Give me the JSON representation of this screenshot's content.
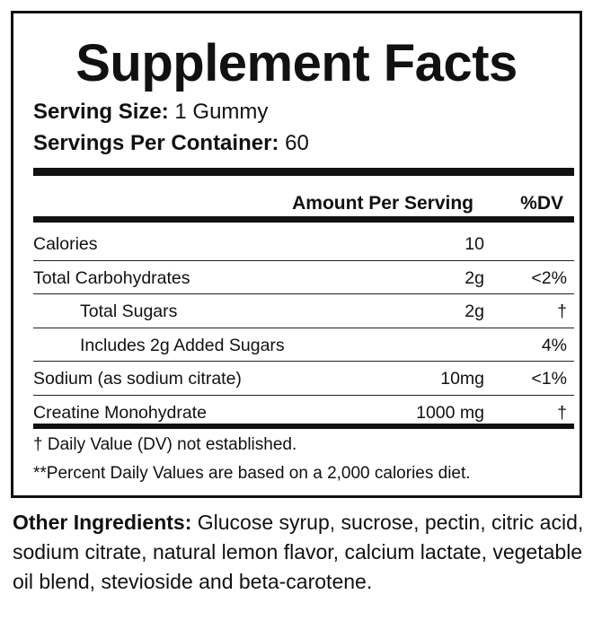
{
  "header": {
    "title": "Supplement Facts",
    "serving_size": {
      "label": "Serving Size:",
      "value": "1 Gummy"
    },
    "servings_per_container": {
      "label": "Servings Per Container:",
      "value": "60"
    }
  },
  "table": {
    "columns": [
      "Amount Per Serving",
      "%DV"
    ],
    "rows": [
      {
        "name": "Calories",
        "amount": "10",
        "level": 0
      },
      {
        "name": "Total Carbohydrates",
        "amount": "2g",
        "dv": "<2%",
        "level": 0
      },
      {
        "name": "Total Sugars",
        "amount": "2g",
        "dv": "†",
        "level": 1
      },
      {
        "name": "Includes 2g Added Sugars",
        "dv": "4%",
        "level": 1
      },
      {
        "name": "Sodium (as sodium citrate)",
        "amount": "10mg",
        "dv": "<1%",
        "level": 0
      },
      {
        "name": "Creatine Monohydrate",
        "amount": "1000 mg",
        "dv": "†",
        "level": 0
      }
    ]
  },
  "footnotes": [
    "† Daily Value (DV) not established.",
    "**Percent Daily Values are based on a 2,000 calories diet."
  ],
  "ingredients": {
    "label": "Other Ingredients:",
    "text": "Glucose syrup, sucrose, pectin, citric acid, sodium citrate, natural lemon flavor, calcium lactate, vegetable oil blend, stevioside and beta-carotene."
  }
}
